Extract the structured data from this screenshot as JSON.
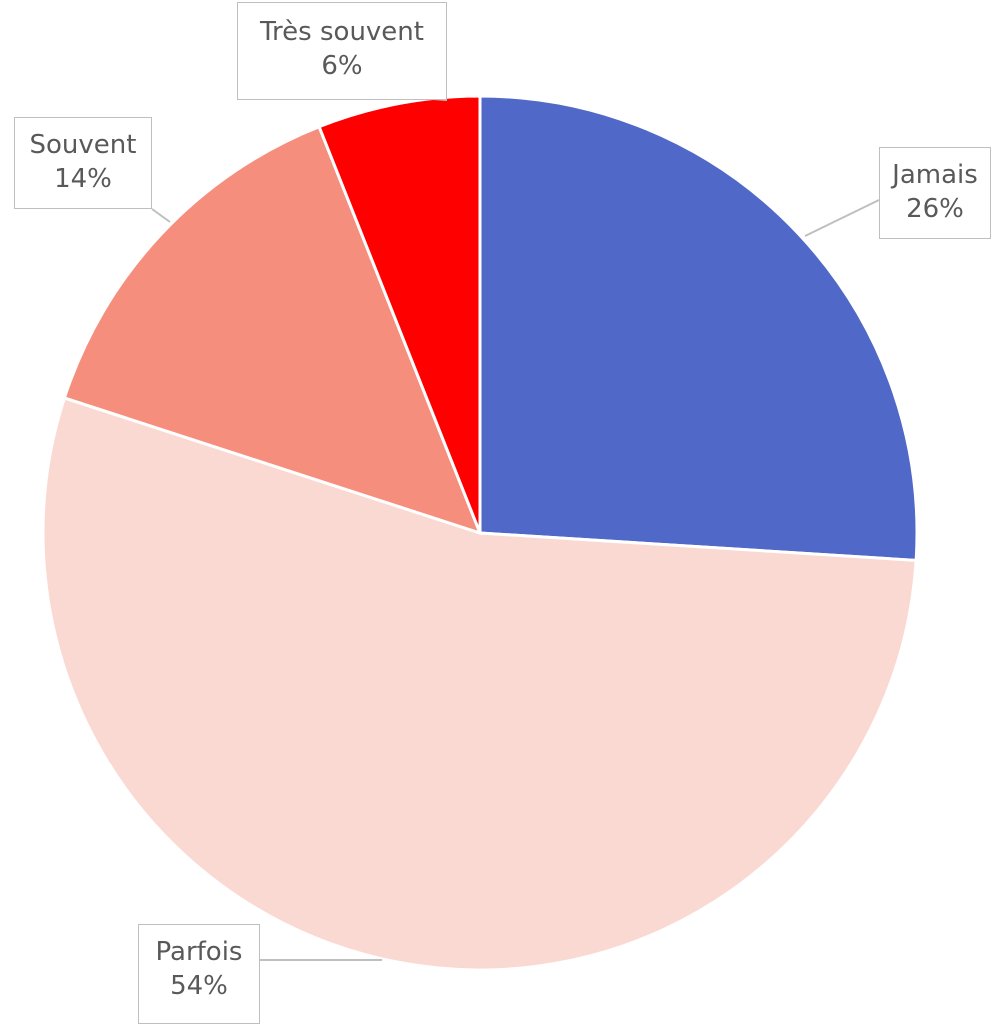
{
  "chart_data": {
    "type": "pie",
    "slices": [
      {
        "label": "Jamais",
        "value": 26,
        "value_label": "26%",
        "color": "#5068C7"
      },
      {
        "label": "Parfois",
        "value": 54,
        "value_label": "54%",
        "color": "#FBD9D3"
      },
      {
        "label": "Souvent",
        "value": 14,
        "value_label": "14%",
        "color": "#F68E7E"
      },
      {
        "label": "Très souvent",
        "value": 6,
        "value_label": "6%",
        "color": "#FF0000"
      }
    ],
    "legend": "none",
    "data_labels": "callout"
  }
}
